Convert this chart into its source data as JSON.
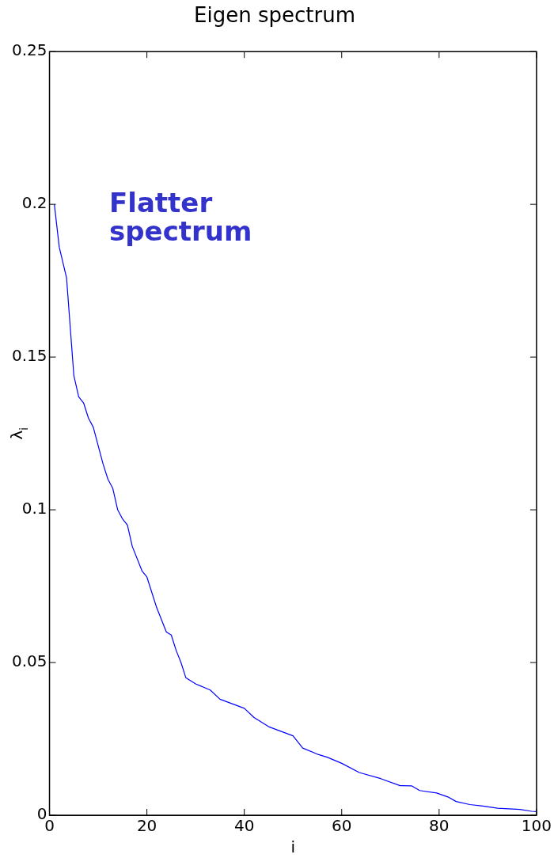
{
  "chart_data": {
    "type": "line",
    "title": "Eigen spectrum",
    "xlabel": "i",
    "ylabel": "λ$_{i}$",
    "x": [
      1,
      2,
      3.5,
      5,
      6,
      7,
      8,
      9,
      10,
      11,
      12,
      13,
      14,
      15,
      16,
      17,
      19,
      20,
      22,
      24,
      25,
      26,
      27,
      28,
      30,
      33,
      35,
      40,
      42,
      45,
      50,
      52,
      55,
      57,
      60,
      63.6,
      68,
      72,
      74.4,
      76,
      79.5,
      81.8,
      83.5,
      86.3,
      89,
      92,
      96.6,
      99,
      100
    ],
    "series": [
      {
        "color": "#0000ff",
        "values": [
          0.2,
          0.186,
          0.176,
          0.144,
          0.137,
          0.135,
          0.13,
          0.127,
          0.121,
          0.115,
          0.11,
          0.107,
          0.1,
          0.097,
          0.095,
          0.088,
          0.08,
          0.078,
          0.068,
          0.06,
          0.059,
          0.054,
          0.05,
          0.045,
          0.043,
          0.041,
          0.038,
          0.035,
          0.032,
          0.029,
          0.026,
          0.022,
          0.02,
          0.019,
          0.017,
          0.014,
          0.012,
          0.0097,
          0.0096,
          0.0081,
          0.0073,
          0.006,
          0.0045,
          0.0035,
          0.003,
          0.0023,
          0.0019,
          0.0013,
          0.0012
        ]
      }
    ],
    "annotations": [
      "Flatter spectrum"
    ],
    "xlim": [
      0,
      100
    ],
    "xticks": [
      0,
      20,
      40,
      60,
      80,
      100
    ],
    "ylim": [
      0,
      0.25
    ],
    "yticks": [
      0,
      0.05,
      0.1,
      0.15,
      0.2,
      0.25
    ],
    "grid": false,
    "legend": false,
    "marker": "none",
    "line_style": "solid"
  }
}
